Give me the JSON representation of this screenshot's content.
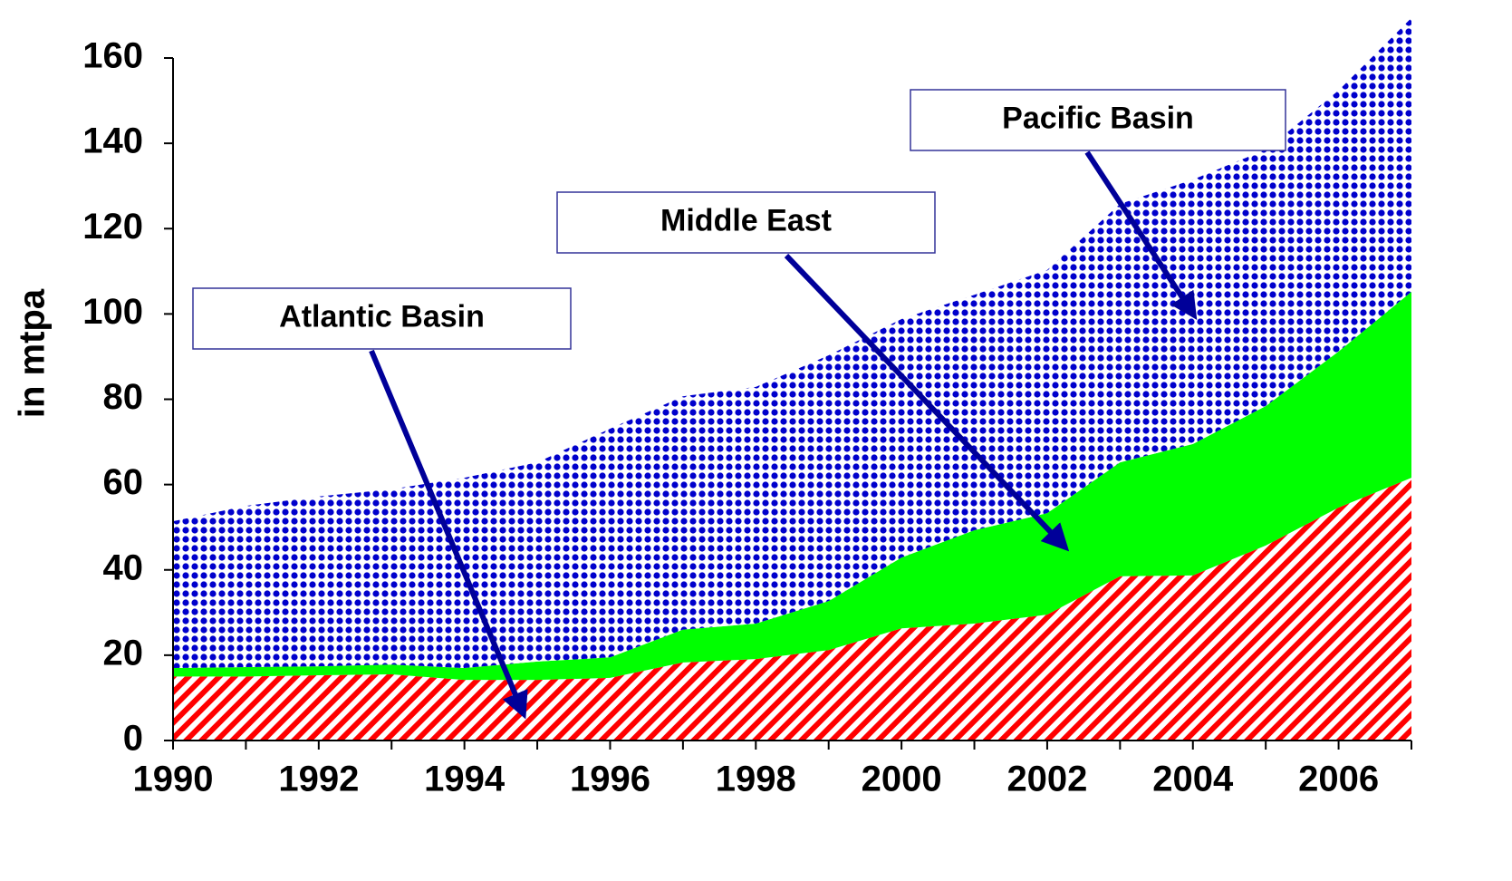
{
  "chart_data": {
    "type": "stacked_area",
    "y_label": "in mtpa",
    "x": [
      1990,
      1991,
      1992,
      1993,
      1994,
      1995,
      1996,
      1997,
      1998,
      1999,
      2000,
      2001,
      2002,
      2003,
      2004,
      2005,
      2006,
      2007
    ],
    "xlim": [
      1990,
      2007
    ],
    "xticks": [
      1990,
      1992,
      1994,
      1996,
      1998,
      2000,
      2002,
      2004,
      2006
    ],
    "ylim": [
      0,
      160
    ],
    "yticks": [
      0,
      20,
      40,
      60,
      80,
      100,
      120,
      140,
      160
    ],
    "grid": false,
    "series": [
      {
        "name": "Atlantic Basin",
        "color": "#ff0000",
        "pattern": "hatch",
        "values": [
          15,
          15,
          15.3,
          15.5,
          14.2,
          14.2,
          14.7,
          18.3,
          19.1,
          21.2,
          26.3,
          27.4,
          29.5,
          38.5,
          38.7,
          45.7,
          54.6,
          61.6
        ]
      },
      {
        "name": "Middle East",
        "color": "#00ff00",
        "pattern": "solid",
        "values": [
          2,
          2.2,
          2.1,
          2.3,
          2.8,
          4.3,
          4.8,
          7.7,
          8.3,
          11.5,
          16.6,
          21.9,
          23.8,
          26.7,
          30.8,
          32.7,
          36.6,
          43.6
        ]
      },
      {
        "name": "Pacific Basin",
        "color": "#0000cc",
        "pattern": "dots",
        "values": [
          34.4,
          37.8,
          39.8,
          41.1,
          44.6,
          46.7,
          53.6,
          54.7,
          55.5,
          57.6,
          55.9,
          55.2,
          57,
          60.6,
          62,
          60.1,
          61.2,
          64.2
        ]
      }
    ]
  }
}
